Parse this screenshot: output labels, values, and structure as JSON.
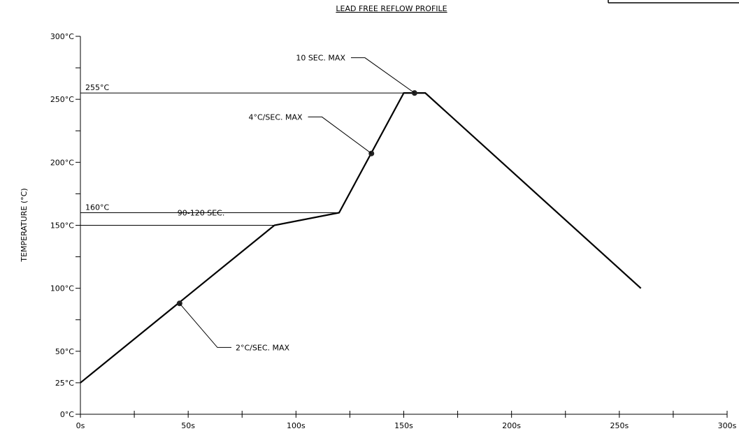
{
  "chart_data": {
    "type": "line",
    "title": "LEAD FREE REFLOW PROFILE",
    "xlabel": "",
    "ylabel": "TEMPERATURE (°C)",
    "xlim": [
      0,
      300
    ],
    "ylim": [
      0,
      300
    ],
    "x_ticks": [
      0,
      50,
      100,
      150,
      200,
      250,
      300
    ],
    "x_tick_labels": [
      "0s",
      "50s",
      "100s",
      "150s",
      "200s",
      "250s",
      "300s"
    ],
    "y_ticks": [
      0,
      25,
      50,
      100,
      150,
      200,
      250,
      300
    ],
    "y_tick_labels": [
      "0°C",
      "25°C",
      "50°C",
      "100°C",
      "150°C",
      "200°C",
      "250°C",
      "300°C"
    ],
    "series": [
      {
        "x": [
          0,
          90,
          120,
          150,
          160,
          260
        ],
        "y": [
          25,
          150,
          160,
          255,
          255,
          100
        ]
      }
    ],
    "markers": [
      {
        "x": 46,
        "y": 88
      },
      {
        "x": 135,
        "y": 207
      },
      {
        "x": 155,
        "y": 255
      }
    ],
    "reference_lines": [
      {
        "y": 255,
        "x_end": 150,
        "label": "255°C"
      },
      {
        "y": 160,
        "x_end": 120,
        "label": "160°C"
      },
      {
        "y": 150,
        "x_end": 90,
        "label": ""
      }
    ],
    "annotations": [
      {
        "text": "90-120 SEC.",
        "x": 45,
        "y": 160
      },
      {
        "text": "10 SEC. MAX",
        "x": 100,
        "y": 283,
        "point_x": 155,
        "point_y": 255
      },
      {
        "text": "4°C/SEC. MAX",
        "x": 78,
        "y": 236,
        "point_x": 135,
        "point_y": 207
      },
      {
        "text": "2°C/SEC. MAX",
        "x": 72,
        "y": 53,
        "point_x": 46,
        "point_y": 88
      }
    ],
    "grid": false
  }
}
